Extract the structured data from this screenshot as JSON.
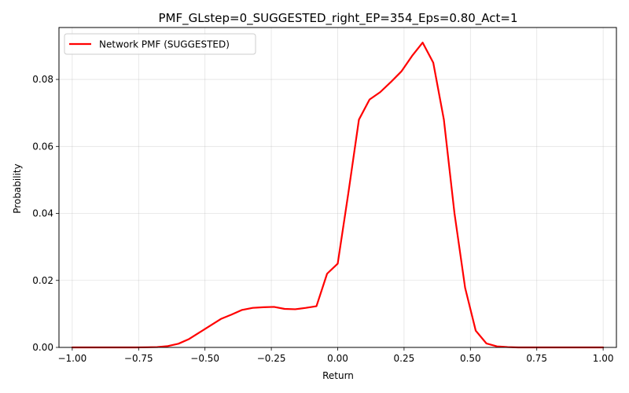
{
  "chart_data": {
    "type": "line",
    "title": "PMF_GLstep=0_SUGGESTED_right_EP=354_Eps=0.80_Act=1",
    "xlabel": "Return",
    "ylabel": "Probability",
    "xlim": [
      -1.05,
      1.05
    ],
    "ylim": [
      0,
      0.0955
    ],
    "xticks": [
      -1.0,
      -0.75,
      -0.5,
      -0.25,
      0.0,
      0.25,
      0.5,
      0.75,
      1.0
    ],
    "xtick_labels": [
      "−1.00",
      "−0.75",
      "−0.50",
      "−0.25",
      "0.00",
      "0.25",
      "0.50",
      "0.75",
      "1.00"
    ],
    "yticks": [
      0.0,
      0.02,
      0.04,
      0.06,
      0.08
    ],
    "ytick_labels": [
      "0.00",
      "0.02",
      "0.04",
      "0.06",
      "0.08"
    ],
    "grid": true,
    "legend_position": "top-left",
    "series": [
      {
        "name": "Network PMF (SUGGESTED)",
        "color": "#ff0000",
        "x": [
          -1.0,
          -0.96,
          -0.92,
          -0.88,
          -0.84,
          -0.8,
          -0.76,
          -0.72,
          -0.68,
          -0.64,
          -0.6,
          -0.56,
          -0.52,
          -0.48,
          -0.44,
          -0.4,
          -0.36,
          -0.32,
          -0.28,
          -0.24,
          -0.2,
          -0.16,
          -0.12,
          -0.08,
          -0.04,
          0.0,
          0.04,
          0.08,
          0.12,
          0.16,
          0.2,
          0.24,
          0.28,
          0.32,
          0.36,
          0.4,
          0.44,
          0.48,
          0.52,
          0.56,
          0.6,
          0.64,
          0.68,
          0.72,
          0.76,
          0.8,
          0.84,
          0.88,
          0.92,
          0.96,
          1.0
        ],
        "y": [
          0.0,
          0.0,
          0.0,
          0.0,
          0.0,
          0.0,
          0.0,
          5e-05,
          0.0001,
          0.0004,
          0.0011,
          0.0025,
          0.0045,
          0.0065,
          0.0085,
          0.0098,
          0.0112,
          0.0118,
          0.012,
          0.0121,
          0.0115,
          0.0114,
          0.0118,
          0.0123,
          0.022,
          0.025,
          0.046,
          0.068,
          0.074,
          0.0762,
          0.0792,
          0.0824,
          0.087,
          0.091,
          0.085,
          0.068,
          0.04,
          0.0178,
          0.005,
          0.0012,
          0.0003,
          0.0001,
          0.0,
          0.0,
          0.0,
          0.0,
          0.0,
          0.0,
          0.0,
          0.0,
          0.0
        ]
      }
    ]
  }
}
